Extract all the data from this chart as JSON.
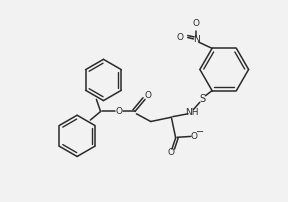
{
  "bg_color": "#f2f2f2",
  "line_color": "#2a2a2a",
  "line_width": 1.1,
  "fig_width": 2.88,
  "fig_height": 2.02,
  "dpi": 100,
  "xlim": [
    0,
    10
  ],
  "ylim": [
    0,
    7
  ]
}
